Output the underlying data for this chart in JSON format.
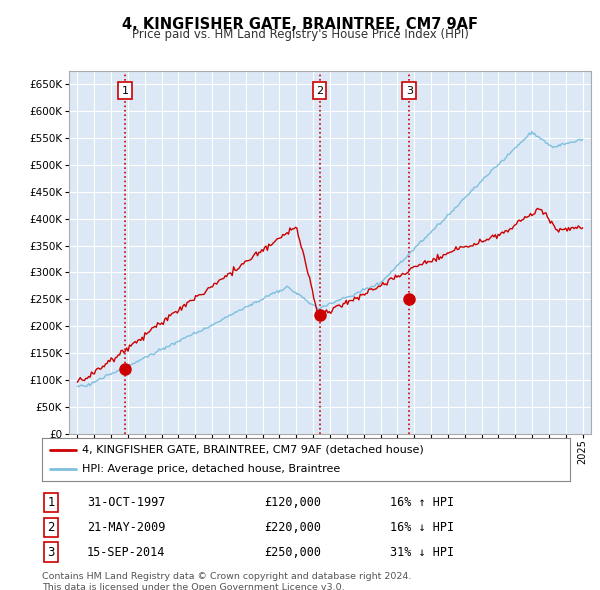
{
  "title": "4, KINGFISHER GATE, BRAINTREE, CM7 9AF",
  "subtitle": "Price paid vs. HM Land Registry's House Price Index (HPI)",
  "hpi_color": "#7fbfdf",
  "price_color": "#cc0000",
  "background_color": "#ffffff",
  "plot_bg_color": "#dce8f5",
  "grid_color": "#ffffff",
  "ylim": [
    0,
    675000
  ],
  "yticks": [
    0,
    50000,
    100000,
    150000,
    200000,
    250000,
    300000,
    350000,
    400000,
    450000,
    500000,
    550000,
    600000,
    650000
  ],
  "ytick_labels": [
    "£0",
    "£50K",
    "£100K",
    "£150K",
    "£200K",
    "£250K",
    "£300K",
    "£350K",
    "£400K",
    "£450K",
    "£500K",
    "£550K",
    "£600K",
    "£650K"
  ],
  "sale_dates": [
    1997.83,
    2009.38,
    2014.71
  ],
  "sale_prices": [
    120000,
    220000,
    250000
  ],
  "sale_labels": [
    "1",
    "2",
    "3"
  ],
  "vline_color": "#cc0000",
  "dot_color": "#cc0000",
  "legend_line1": "4, KINGFISHER GATE, BRAINTREE, CM7 9AF (detached house)",
  "legend_line2": "HPI: Average price, detached house, Braintree",
  "table_data": [
    [
      "1",
      "31-OCT-1997",
      "£120,000",
      "16% ↑ HPI"
    ],
    [
      "2",
      "21-MAY-2009",
      "£220,000",
      "16% ↓ HPI"
    ],
    [
      "3",
      "15-SEP-2014",
      "£250,000",
      "31% ↓ HPI"
    ]
  ],
  "footer": "Contains HM Land Registry data © Crown copyright and database right 2024.\nThis data is licensed under the Open Government Licence v3.0.",
  "xmin": 1994.5,
  "xmax": 2025.5
}
